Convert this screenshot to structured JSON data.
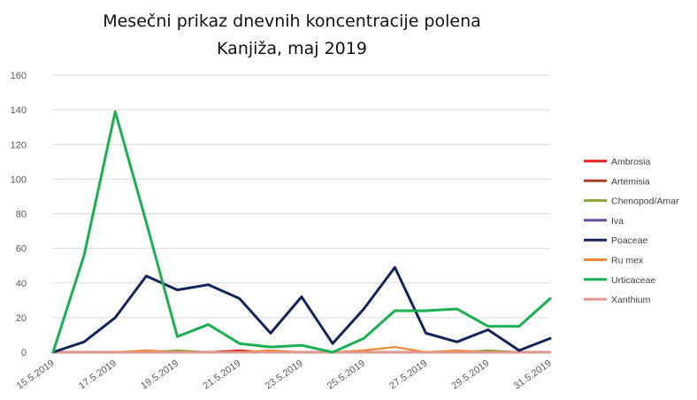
{
  "chart_data": {
    "type": "line",
    "title_lines": [
      "Mesečni prikaz dnevnih koncentracije polena",
      "Kanjiža, maj 2019"
    ],
    "ylim": [
      0,
      160
    ],
    "yticks": [
      0,
      20,
      40,
      60,
      80,
      100,
      120,
      140,
      160
    ],
    "grid": true,
    "legend_position": "right",
    "x": [
      "15.5.2019",
      "16.5.2019",
      "17.5.2019",
      "18.5.2019",
      "19.5.2019",
      "20.5.2019",
      "21.5.2019",
      "22.5.2019",
      "23.5.2019",
      "24.5.2019",
      "25.5.2019",
      "26.5.2019",
      "27.5.2019",
      "28.5.2019",
      "29.5.2019",
      "30.5.2019",
      "31.5.2019"
    ],
    "xtick_labels": [
      "15.5.2019",
      "17.5.2019",
      "19.5.2019",
      "21.5.2019",
      "23.5.2019",
      "25.5.2019",
      "27.5.2019",
      "29.5.2019",
      "31.5.2019"
    ],
    "series": [
      {
        "name": "Ambrosia",
        "color": "#e02020",
        "values": [
          0,
          0,
          0,
          0,
          0,
          0,
          1,
          0,
          0,
          0,
          0,
          0,
          0,
          0,
          0,
          0,
          0
        ]
      },
      {
        "name": "Artemisia",
        "color": "#a0402a",
        "values": [
          0,
          0,
          0,
          0,
          0,
          0,
          0,
          0,
          0,
          0,
          0,
          0,
          0,
          0,
          0,
          0,
          0
        ]
      },
      {
        "name": "Chenopod/Amar",
        "color": "#8aa83a",
        "values": [
          0,
          0,
          0,
          0,
          1,
          0,
          0,
          0,
          0,
          0,
          0,
          0,
          0,
          0,
          1,
          0,
          0
        ]
      },
      {
        "name": "Iva",
        "color": "#6a4a9a",
        "values": [
          0,
          0,
          0,
          0,
          0,
          0,
          0,
          0,
          0,
          0,
          0,
          0,
          0,
          0,
          0,
          0,
          0
        ]
      },
      {
        "name": "Poaceae",
        "color": "#14245a",
        "values": [
          0,
          6,
          20,
          44,
          36,
          39,
          31,
          11,
          32,
          5,
          25,
          49,
          11,
          6,
          13,
          1,
          8
        ]
      },
      {
        "name": "Ru mex",
        "color": "#f0883a",
        "values": [
          0,
          0,
          0,
          1,
          0,
          0,
          0,
          1,
          0,
          0,
          1,
          3,
          0,
          1,
          0,
          0,
          0
        ]
      },
      {
        "name": "Urticaceae",
        "color": "#1ab052",
        "values": [
          0,
          56,
          139,
          75,
          9,
          16,
          5,
          3,
          4,
          0,
          8,
          24,
          24,
          25,
          15,
          15,
          31
        ]
      },
      {
        "name": "Xanthium",
        "color": "#e09890",
        "values": [
          0,
          0,
          0,
          0,
          0,
          0,
          0,
          0,
          0,
          0,
          0,
          0,
          0,
          0,
          0,
          0,
          0
        ]
      }
    ]
  }
}
